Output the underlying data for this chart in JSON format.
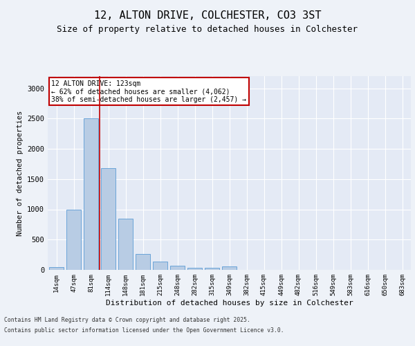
{
  "title1": "12, ALTON DRIVE, COLCHESTER, CO3 3ST",
  "title2": "Size of property relative to detached houses in Colchester",
  "xlabel": "Distribution of detached houses by size in Colchester",
  "ylabel": "Number of detached properties",
  "categories": [
    "14sqm",
    "47sqm",
    "81sqm",
    "114sqm",
    "148sqm",
    "181sqm",
    "215sqm",
    "248sqm",
    "282sqm",
    "315sqm",
    "349sqm",
    "382sqm",
    "415sqm",
    "449sqm",
    "482sqm",
    "516sqm",
    "549sqm",
    "583sqm",
    "616sqm",
    "650sqm",
    "683sqm"
  ],
  "values": [
    50,
    1000,
    2500,
    1680,
    850,
    260,
    140,
    70,
    40,
    40,
    60,
    0,
    0,
    0,
    0,
    0,
    0,
    0,
    0,
    0,
    0
  ],
  "bar_color": "#b8cce4",
  "bar_edge_color": "#5b9bd5",
  "vline_x": 2.5,
  "vline_color": "#c00000",
  "annotation_title": "12 ALTON DRIVE: 123sqm",
  "annotation_line1": "← 62% of detached houses are smaller (4,062)",
  "annotation_line2": "38% of semi-detached houses are larger (2,457) →",
  "annotation_box_color": "#c00000",
  "footnote1": "Contains HM Land Registry data © Crown copyright and database right 2025.",
  "footnote2": "Contains public sector information licensed under the Open Government Licence v3.0.",
  "ylim": [
    0,
    3200
  ],
  "yticks": [
    0,
    500,
    1000,
    1500,
    2000,
    2500,
    3000
  ],
  "bg_color": "#eef2f8",
  "plot_bg": "#e4eaf5",
  "grid_color": "#ffffff",
  "title1_fontsize": 11,
  "title2_fontsize": 9
}
